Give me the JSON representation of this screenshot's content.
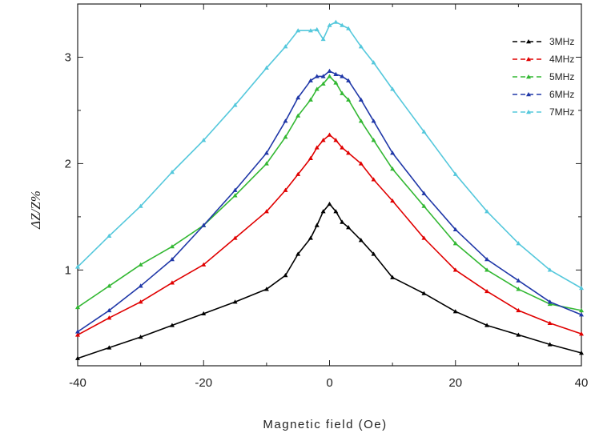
{
  "chart_data": {
    "type": "line",
    "title": "",
    "xlabel": "Magnetic field (Oe)",
    "ylabel": "ΔZ/Z%",
    "xlim": [
      -40,
      40
    ],
    "ylim": [
      0.1,
      3.5
    ],
    "xticks": [
      -40,
      -20,
      0,
      20,
      40
    ],
    "xtick_labels": [
      "-40",
      "-20",
      "0",
      "20",
      "40"
    ],
    "yticks": [
      1,
      2,
      3
    ],
    "ytick_labels": [
      "1",
      "2",
      "3"
    ],
    "grid": false,
    "legend_position": "top-right",
    "marker": "triangle",
    "series": [
      {
        "name": "3MHz",
        "color": "#000000",
        "x": [
          -40,
          -35,
          -30,
          -25,
          -20,
          -15,
          -10,
          -7,
          -5,
          -3,
          -2,
          -1,
          0,
          1,
          2,
          3,
          5,
          7,
          10,
          15,
          20,
          25,
          30,
          35,
          40
        ],
        "y": [
          0.17,
          0.27,
          0.37,
          0.48,
          0.59,
          0.7,
          0.82,
          0.95,
          1.15,
          1.3,
          1.42,
          1.55,
          1.62,
          1.55,
          1.45,
          1.4,
          1.28,
          1.15,
          0.93,
          0.78,
          0.61,
          0.48,
          0.39,
          0.3,
          0.22
        ]
      },
      {
        "name": "4MHz",
        "color": "#e00000",
        "x": [
          -40,
          -35,
          -30,
          -25,
          -20,
          -15,
          -10,
          -7,
          -5,
          -3,
          -2,
          -1,
          0,
          1,
          2,
          3,
          5,
          7,
          10,
          15,
          20,
          25,
          30,
          35,
          40
        ],
        "y": [
          0.39,
          0.55,
          0.7,
          0.88,
          1.05,
          1.3,
          1.55,
          1.75,
          1.9,
          2.05,
          2.15,
          2.22,
          2.27,
          2.22,
          2.15,
          2.1,
          2.0,
          1.85,
          1.65,
          1.3,
          1.0,
          0.8,
          0.62,
          0.5,
          0.4
        ]
      },
      {
        "name": "5MHz",
        "color": "#33b833",
        "x": [
          -40,
          -35,
          -30,
          -25,
          -20,
          -15,
          -10,
          -7,
          -5,
          -3,
          -2,
          -1,
          0,
          1,
          2,
          3,
          5,
          7,
          10,
          15,
          20,
          25,
          30,
          35,
          40
        ],
        "y": [
          0.65,
          0.85,
          1.05,
          1.22,
          1.42,
          1.7,
          2.0,
          2.25,
          2.45,
          2.6,
          2.7,
          2.75,
          2.82,
          2.76,
          2.66,
          2.6,
          2.4,
          2.22,
          1.95,
          1.6,
          1.25,
          1.0,
          0.82,
          0.68,
          0.62
        ]
      },
      {
        "name": "6MHz",
        "color": "#2038a8",
        "x": [
          -40,
          -35,
          -30,
          -25,
          -20,
          -15,
          -10,
          -7,
          -5,
          -3,
          -2,
          -1,
          0,
          1,
          2,
          3,
          5,
          7,
          10,
          15,
          20,
          25,
          30,
          35,
          40
        ],
        "y": [
          0.42,
          0.62,
          0.85,
          1.1,
          1.42,
          1.75,
          2.1,
          2.4,
          2.62,
          2.78,
          2.82,
          2.82,
          2.87,
          2.84,
          2.82,
          2.78,
          2.6,
          2.4,
          2.1,
          1.72,
          1.38,
          1.1,
          0.9,
          0.7,
          0.58
        ]
      },
      {
        "name": "7MHz",
        "color": "#55c8dc",
        "x": [
          -40,
          -35,
          -30,
          -25,
          -20,
          -15,
          -10,
          -7,
          -5,
          -3,
          -2,
          -1,
          0,
          1,
          2,
          3,
          5,
          7,
          10,
          15,
          20,
          25,
          30,
          35,
          40
        ],
        "y": [
          1.03,
          1.32,
          1.6,
          1.92,
          2.22,
          2.55,
          2.9,
          3.1,
          3.25,
          3.25,
          3.26,
          3.17,
          3.3,
          3.33,
          3.3,
          3.27,
          3.1,
          2.95,
          2.7,
          2.3,
          1.9,
          1.55,
          1.25,
          1.0,
          0.83
        ]
      }
    ]
  }
}
